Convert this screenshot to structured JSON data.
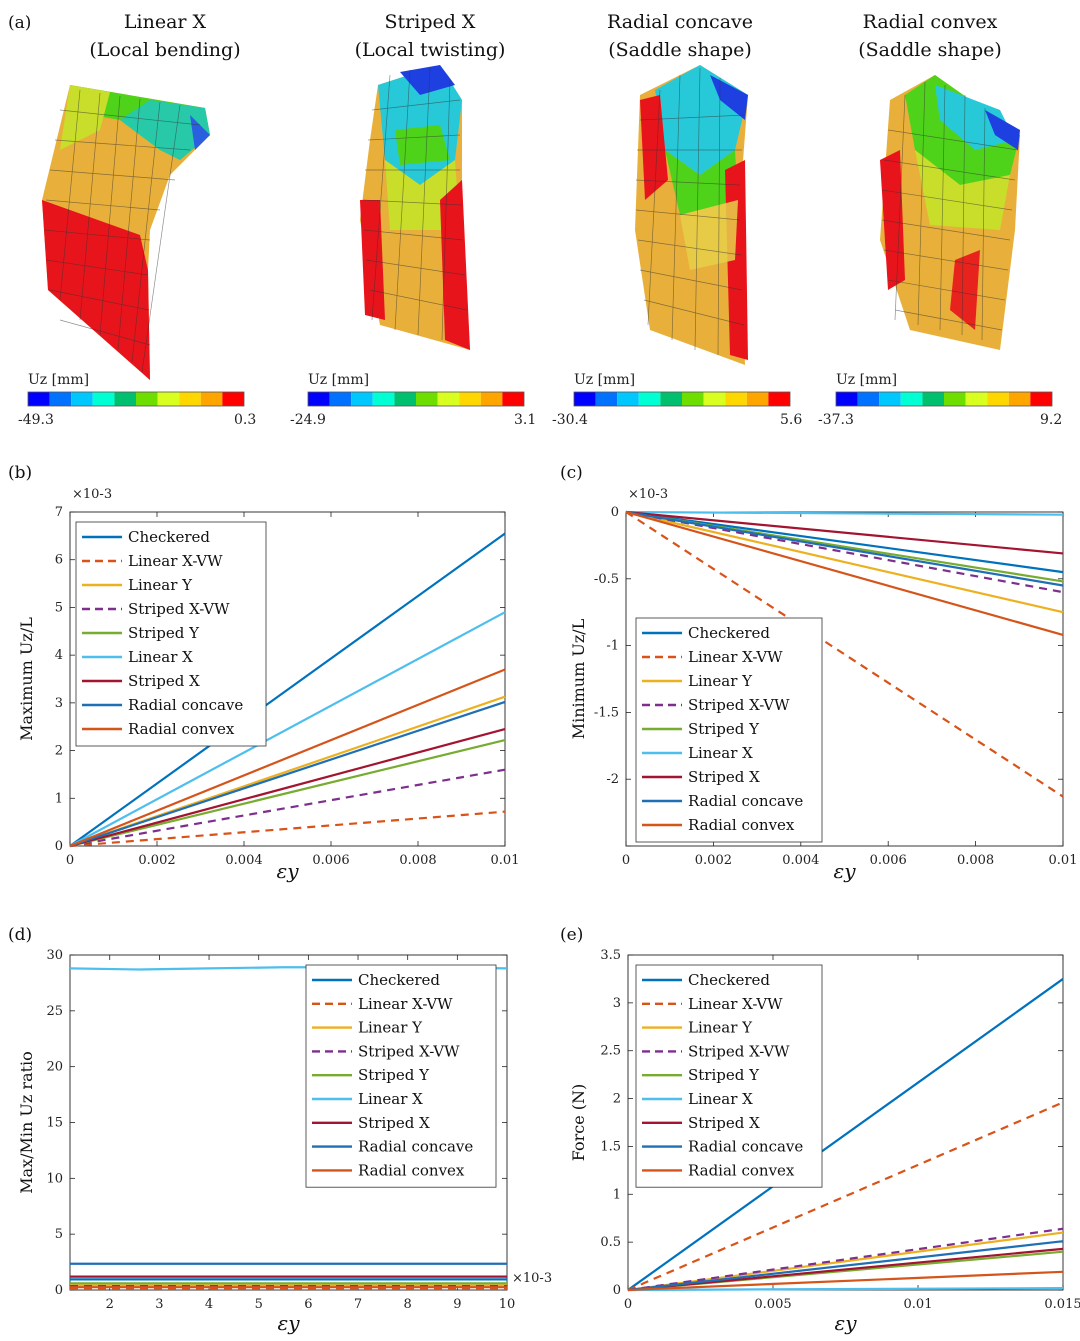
{
  "panel_labels": [
    "(a)",
    "(b)",
    "(c)",
    "(d)",
    "(e)"
  ],
  "colors": {
    "Checkered": "#0072BD",
    "Linear X-VW": "#D95319",
    "Linear Y": "#EDB120",
    "Striped X-VW": "#7E2F8E",
    "Striped Y": "#77AC30",
    "Linear X": "#4DBEEE",
    "Striped X": "#A2142F",
    "Radial concave": "#1F6FB5",
    "Radial convex": "#D4541A"
  },
  "panel_a": {
    "cases": [
      {
        "title": "Linear X",
        "subtitle": "(Local bending)",
        "cb_label": "Uz [mm]",
        "cb_min": "-49.3",
        "cb_max": "0.3"
      },
      {
        "title": "Striped X",
        "subtitle": "(Local twisting)",
        "cb_label": "Uz [mm]",
        "cb_min": "-24.9",
        "cb_max": "3.1"
      },
      {
        "title": "Radial concave",
        "subtitle": "(Saddle shape)",
        "cb_label": "Uz [mm]",
        "cb_min": "-30.4",
        "cb_max": "5.6"
      },
      {
        "title": "Radial convex",
        "subtitle": "(Saddle shape)",
        "cb_label": "Uz [mm]",
        "cb_min": "-37.3",
        "cb_max": "9.2"
      }
    ],
    "colorbar_colors": [
      "#0000ff",
      "#0072ff",
      "#00c8ff",
      "#00ffd2",
      "#00c070",
      "#6edd00",
      "#d8ff20",
      "#ffd700",
      "#ffa500",
      "#ff0000"
    ]
  },
  "chart_data": [
    {
      "id": "b",
      "type": "line",
      "ylabel": "Maximum Uz/L",
      "xlabel": "εy",
      "exponent_label": "×10-3",
      "xlim": [
        0,
        0.01
      ],
      "ylim": [
        0,
        7
      ],
      "xticks": [
        0,
        0.002,
        0.004,
        0.006,
        0.008,
        0.01
      ],
      "xtick_labels": [
        "0",
        "0.002",
        "0.004",
        "0.006",
        "0.008",
        "0.01"
      ],
      "yticks": [
        0,
        1,
        2,
        3,
        4,
        5,
        6,
        7
      ],
      "ytick_labels": [
        "0",
        "1",
        "2",
        "3",
        "4",
        "5",
        "6",
        "7"
      ],
      "legend_position": "top-left",
      "series": [
        {
          "name": "Checkered",
          "dashed": false,
          "x": [
            0,
            0.01
          ],
          "y": [
            0,
            6.55
          ]
        },
        {
          "name": "Linear X-VW",
          "dashed": true,
          "x": [
            0,
            0.01
          ],
          "y": [
            0,
            0.72
          ]
        },
        {
          "name": "Linear Y",
          "dashed": false,
          "x": [
            0,
            0.01
          ],
          "y": [
            0,
            3.13
          ]
        },
        {
          "name": "Striped X-VW",
          "dashed": true,
          "x": [
            0,
            0.01
          ],
          "y": [
            0,
            1.6
          ]
        },
        {
          "name": "Striped Y",
          "dashed": false,
          "x": [
            0,
            0.01
          ],
          "y": [
            0,
            2.22
          ]
        },
        {
          "name": "Linear X",
          "dashed": false,
          "x": [
            0,
            0.01
          ],
          "y": [
            0,
            4.9
          ]
        },
        {
          "name": "Striped X",
          "dashed": false,
          "x": [
            0,
            0.01
          ],
          "y": [
            0,
            2.45
          ]
        },
        {
          "name": "Radial concave",
          "dashed": false,
          "x": [
            0,
            0.01
          ],
          "y": [
            0,
            3.02
          ]
        },
        {
          "name": "Radial convex",
          "dashed": false,
          "x": [
            0,
            0.01
          ],
          "y": [
            0,
            3.7
          ]
        }
      ]
    },
    {
      "id": "c",
      "type": "line",
      "ylabel": "Minimum Uz/L",
      "xlabel": "εy",
      "exponent_label": "×10-3",
      "xlim": [
        0,
        0.01
      ],
      "ylim": [
        -2.5,
        0
      ],
      "xticks": [
        0,
        0.002,
        0.004,
        0.006,
        0.008,
        0.01
      ],
      "xtick_labels": [
        "0",
        "0.002",
        "0.004",
        "0.006",
        "0.008",
        "0.01"
      ],
      "yticks": [
        -2.5,
        -2,
        -1.5,
        -1,
        -0.5,
        0
      ],
      "ytick_labels": [
        "",
        "-2",
        "-1.5",
        "-1",
        "-0.5",
        "0"
      ],
      "legend_position": "bottom-left",
      "series": [
        {
          "name": "Checkered",
          "dashed": false,
          "x": [
            0,
            0.01
          ],
          "y": [
            0,
            -0.45
          ]
        },
        {
          "name": "Linear X-VW",
          "dashed": true,
          "x": [
            0,
            0.01
          ],
          "y": [
            0,
            -2.13
          ]
        },
        {
          "name": "Linear Y",
          "dashed": false,
          "x": [
            0,
            0.01
          ],
          "y": [
            0,
            -0.75
          ]
        },
        {
          "name": "Striped X-VW",
          "dashed": true,
          "x": [
            0,
            0.01
          ],
          "y": [
            0,
            -0.6
          ]
        },
        {
          "name": "Striped Y",
          "dashed": false,
          "x": [
            0,
            0.01
          ],
          "y": [
            0,
            -0.52
          ]
        },
        {
          "name": "Linear X",
          "dashed": false,
          "x": [
            0,
            0.01
          ],
          "y": [
            0,
            -0.02
          ]
        },
        {
          "name": "Striped X",
          "dashed": false,
          "x": [
            0,
            0.01
          ],
          "y": [
            0,
            -0.31
          ]
        },
        {
          "name": "Radial concave",
          "dashed": false,
          "x": [
            0,
            0.01
          ],
          "y": [
            0,
            -0.55
          ]
        },
        {
          "name": "Radial convex",
          "dashed": false,
          "x": [
            0,
            0.01
          ],
          "y": [
            0,
            -0.92
          ]
        }
      ]
    },
    {
      "id": "d",
      "type": "line",
      "ylabel": "Max/Min Uz ratio",
      "xlabel": "εy",
      "exponent_label": "×10-3",
      "xlim": [
        1.2,
        10
      ],
      "ylim": [
        0,
        30
      ],
      "xticks": [
        2,
        3,
        4,
        5,
        6,
        7,
        8,
        9,
        10
      ],
      "xtick_labels": [
        "2",
        "3",
        "4",
        "5",
        "6",
        "7",
        "8",
        "9",
        "10"
      ],
      "yticks": [
        0,
        5,
        10,
        15,
        20,
        25,
        30
      ],
      "ytick_labels": [
        "0",
        "5",
        "10",
        "15",
        "20",
        "25",
        "30"
      ],
      "legend_position": "top-right",
      "series": [
        {
          "name": "Checkered",
          "dashed": false,
          "x": [
            1.2,
            10
          ],
          "y": [
            0.95,
            0.95
          ]
        },
        {
          "name": "Linear X-VW",
          "dashed": true,
          "x": [
            1.2,
            10
          ],
          "y": [
            0.1,
            0.1
          ]
        },
        {
          "name": "Linear Y",
          "dashed": false,
          "x": [
            1.2,
            10
          ],
          "y": [
            0.42,
            0.42
          ]
        },
        {
          "name": "Striped X-VW",
          "dashed": true,
          "x": [
            1.2,
            10
          ],
          "y": [
            0.35,
            0.35
          ]
        },
        {
          "name": "Striped Y",
          "dashed": false,
          "x": [
            1.2,
            10
          ],
          "y": [
            0.6,
            0.6
          ]
        },
        {
          "name": "Linear X",
          "dashed": false,
          "x": [
            1.2,
            2.6,
            4,
            5.5,
            7,
            8.5,
            10
          ],
          "y": [
            28.8,
            28.7,
            28.8,
            28.9,
            28.9,
            28.9,
            28.8
          ]
        },
        {
          "name": "Striped X",
          "dashed": false,
          "x": [
            1.2,
            10
          ],
          "y": [
            1.2,
            1.2
          ]
        },
        {
          "name": "Radial concave",
          "dashed": false,
          "x": [
            1.2,
            10
          ],
          "y": [
            2.35,
            2.35
          ]
        },
        {
          "name": "Radial convex",
          "dashed": false,
          "x": [
            1.2,
            10
          ],
          "y": [
            0.25,
            0.25
          ]
        }
      ]
    },
    {
      "id": "e",
      "type": "line",
      "ylabel": "Force (N)",
      "xlabel": "εy",
      "xlim": [
        0,
        0.015
      ],
      "ylim": [
        0,
        3.5
      ],
      "xticks": [
        0,
        0.005,
        0.01,
        0.015
      ],
      "xtick_labels": [
        "0",
        "0.005",
        "0.01",
        "0.015"
      ],
      "yticks": [
        0,
        0.5,
        1,
        1.5,
        2,
        2.5,
        3,
        3.5
      ],
      "ytick_labels": [
        "0",
        "0.5",
        "1",
        "1.5",
        "2",
        "2.5",
        "3",
        "3.5"
      ],
      "legend_position": "top-left",
      "series": [
        {
          "name": "Checkered",
          "dashed": false,
          "x": [
            0,
            0.015
          ],
          "y": [
            0,
            3.25
          ]
        },
        {
          "name": "Linear X-VW",
          "dashed": true,
          "x": [
            0,
            0.015
          ],
          "y": [
            0,
            1.96
          ]
        },
        {
          "name": "Linear Y",
          "dashed": false,
          "x": [
            0,
            0.015
          ],
          "y": [
            0,
            0.6
          ]
        },
        {
          "name": "Striped X-VW",
          "dashed": true,
          "x": [
            0,
            0.015
          ],
          "y": [
            0,
            0.64
          ]
        },
        {
          "name": "Striped Y",
          "dashed": false,
          "x": [
            0,
            0.015
          ],
          "y": [
            0,
            0.4
          ]
        },
        {
          "name": "Linear X",
          "dashed": false,
          "x": [
            0,
            0.015
          ],
          "y": [
            0,
            0.02
          ]
        },
        {
          "name": "Striped X",
          "dashed": false,
          "x": [
            0,
            0.015
          ],
          "y": [
            0,
            0.43
          ]
        },
        {
          "name": "Radial concave",
          "dashed": false,
          "x": [
            0,
            0.015
          ],
          "y": [
            0,
            0.51
          ]
        },
        {
          "name": "Radial convex",
          "dashed": false,
          "x": [
            0,
            0.015
          ],
          "y": [
            0,
            0.19
          ]
        }
      ]
    }
  ]
}
